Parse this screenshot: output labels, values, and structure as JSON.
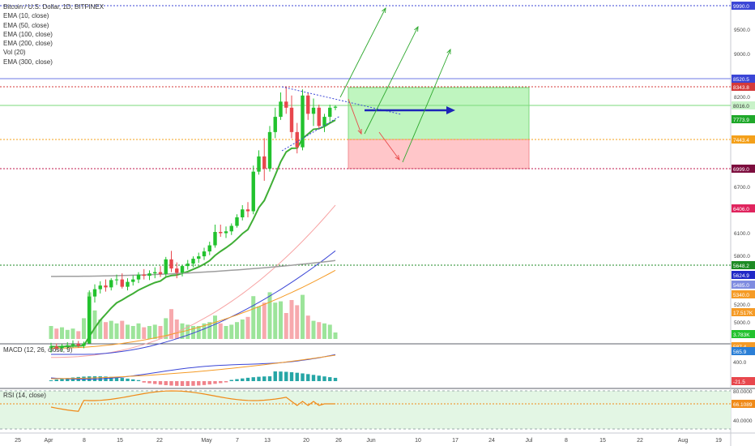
{
  "legend": {
    "title": "Bitcoin / U.S. Dollar, 1D, BITFINEX",
    "studies": [
      "EMA (10, close)",
      "EMA (50, close)",
      "EMA (100, close)",
      "EMA (200, close)",
      "Vol (20)",
      "EMA (300, close)"
    ]
  },
  "macd_label": "MACD (12, 26, close, 9)",
  "rsi_label": "RSI (14, close)",
  "colors": {
    "up": "#22c22e",
    "down": "#e8474d",
    "ema10": "#3fae35",
    "ema50": "#f7a3a3",
    "ema100": "#3b46d6",
    "ema200": "#f59b26",
    "ema300": "#9e9e9e",
    "volume_up": "#9ce49a",
    "volume_down": "#f7a9ad",
    "profit_zone": "#bff5bf",
    "loss_zone": "#ffc6c9",
    "rsi_band": "#e3f6e4"
  },
  "chart_data": {
    "type": "candlestick",
    "x_labels": [
      "25",
      "Apr",
      "8",
      "15",
      "22",
      "May",
      "7",
      "13",
      "20",
      "26",
      "Jun",
      "10",
      "17",
      "24",
      "Jul",
      "8",
      "15",
      "22",
      "Aug",
      "19"
    ],
    "price_axis_ticks": [
      "9500.0",
      "9000.0",
      "8200.0",
      "7000.0",
      "6700.0",
      "6100.0",
      "5800.0",
      "5200.0",
      "5000.0"
    ],
    "price_levels": [
      {
        "label": "9990.0",
        "value": 9990,
        "color": "#3b46d6"
      },
      {
        "label": "8520.5",
        "value": 8520.5,
        "color": "#3b46d6"
      },
      {
        "label": "8343.8",
        "value": 8343.8,
        "color": "#d43a3a"
      },
      {
        "label": "8016.0",
        "value": 8016,
        "color": "#7bd97b"
      },
      {
        "label": "7773.9",
        "value": 7773.9,
        "color": "#1fa82a"
      },
      {
        "label": "7443.4",
        "value": 7443.4,
        "color": "#f4a01a"
      },
      {
        "label": "6999.0",
        "value": 6999,
        "color": "#7d0d3e"
      },
      {
        "label": "6406.0",
        "value": 6406,
        "color": "#e0245e"
      },
      {
        "label": "5648.2",
        "value": 5648.2,
        "color": "#1d8a24"
      },
      {
        "label": "5624.9",
        "value": 5624.9,
        "color": "#2028c6"
      },
      {
        "label": "5485.0",
        "value": 5485,
        "color": "#7f8ce0"
      },
      {
        "label": "5340.0",
        "value": 5340,
        "color": "#f59b26"
      },
      {
        "label": "17.517K",
        "value": null,
        "color": "#f59b26"
      },
      {
        "label": "3.783K",
        "value": null,
        "color": "#22c22e"
      }
    ],
    "macd_axis": [
      "587.4",
      "565.9",
      "400.0",
      "-21.5"
    ],
    "rsi_axis": [
      "80.0000",
      "66.1089",
      "40.0000"
    ],
    "candles": [
      {
        "o": 4060,
        "h": 4140,
        "l": 3980,
        "c": 4080,
        "v": 1.0
      },
      {
        "o": 4080,
        "h": 4130,
        "l": 4020,
        "c": 4050,
        "v": 0.8
      },
      {
        "o": 4050,
        "h": 4120,
        "l": 3990,
        "c": 4090,
        "v": 0.9
      },
      {
        "o": 4090,
        "h": 4150,
        "l": 4040,
        "c": 4100,
        "v": 0.7
      },
      {
        "o": 4100,
        "h": 4180,
        "l": 4060,
        "c": 4120,
        "v": 0.8
      },
      {
        "o": 4120,
        "h": 4170,
        "l": 4060,
        "c": 4090,
        "v": 0.6
      },
      {
        "o": 4090,
        "h": 4160,
        "l": 4050,
        "c": 4130,
        "v": 1.6
      },
      {
        "o": 4130,
        "h": 5000,
        "l": 4120,
        "c": 4900,
        "v": 3.6
      },
      {
        "o": 4900,
        "h": 5100,
        "l": 4800,
        "c": 5020,
        "v": 2.2
      },
      {
        "o": 5020,
        "h": 5150,
        "l": 4950,
        "c": 5080,
        "v": 1.5
      },
      {
        "o": 5080,
        "h": 5180,
        "l": 4980,
        "c": 5050,
        "v": 1.3
      },
      {
        "o": 5050,
        "h": 5200,
        "l": 5000,
        "c": 5170,
        "v": 1.4
      },
      {
        "o": 5170,
        "h": 5260,
        "l": 5090,
        "c": 5180,
        "v": 1.2
      },
      {
        "o": 5180,
        "h": 5280,
        "l": 5030,
        "c": 5060,
        "v": 1.4
      },
      {
        "o": 5060,
        "h": 5200,
        "l": 5000,
        "c": 5140,
        "v": 1.1
      },
      {
        "o": 5140,
        "h": 5250,
        "l": 5080,
        "c": 5180,
        "v": 1.0
      },
      {
        "o": 5180,
        "h": 5300,
        "l": 5120,
        "c": 5260,
        "v": 1.2
      },
      {
        "o": 5260,
        "h": 5350,
        "l": 5180,
        "c": 5240,
        "v": 0.9
      },
      {
        "o": 5240,
        "h": 5330,
        "l": 5170,
        "c": 5280,
        "v": 1.0
      },
      {
        "o": 5280,
        "h": 5380,
        "l": 5200,
        "c": 5300,
        "v": 1.1
      },
      {
        "o": 5300,
        "h": 5400,
        "l": 5220,
        "c": 5270,
        "v": 1.0
      },
      {
        "o": 5270,
        "h": 5550,
        "l": 5230,
        "c": 5510,
        "v": 1.6
      },
      {
        "o": 5510,
        "h": 5650,
        "l": 5300,
        "c": 5360,
        "v": 2.3
      },
      {
        "o": 5360,
        "h": 5460,
        "l": 5200,
        "c": 5290,
        "v": 1.5
      },
      {
        "o": 5290,
        "h": 5420,
        "l": 5230,
        "c": 5400,
        "v": 1.2
      },
      {
        "o": 5400,
        "h": 5500,
        "l": 5340,
        "c": 5440,
        "v": 1.1
      },
      {
        "o": 5440,
        "h": 5560,
        "l": 5380,
        "c": 5520,
        "v": 1.0
      },
      {
        "o": 5520,
        "h": 5620,
        "l": 5450,
        "c": 5560,
        "v": 1.0
      },
      {
        "o": 5560,
        "h": 5700,
        "l": 5500,
        "c": 5640,
        "v": 1.2
      },
      {
        "o": 5640,
        "h": 5800,
        "l": 5580,
        "c": 5740,
        "v": 1.3
      },
      {
        "o": 5740,
        "h": 6080,
        "l": 5700,
        "c": 5960,
        "v": 1.8
      },
      {
        "o": 5960,
        "h": 6080,
        "l": 5880,
        "c": 5940,
        "v": 1.2
      },
      {
        "o": 5940,
        "h": 6050,
        "l": 5860,
        "c": 5970,
        "v": 1.0
      },
      {
        "o": 5970,
        "h": 6100,
        "l": 5910,
        "c": 6060,
        "v": 1.1
      },
      {
        "o": 6060,
        "h": 6250,
        "l": 6030,
        "c": 6200,
        "v": 1.3
      },
      {
        "o": 6200,
        "h": 6400,
        "l": 6150,
        "c": 6330,
        "v": 1.5
      },
      {
        "o": 6330,
        "h": 6450,
        "l": 6200,
        "c": 6300,
        "v": 1.7
      },
      {
        "o": 6300,
        "h": 7050,
        "l": 6250,
        "c": 6950,
        "v": 3.3
      },
      {
        "o": 6950,
        "h": 7300,
        "l": 6900,
        "c": 7200,
        "v": 2.5
      },
      {
        "o": 7200,
        "h": 7500,
        "l": 6800,
        "c": 7000,
        "v": 2.8
      },
      {
        "o": 7000,
        "h": 7700,
        "l": 6950,
        "c": 7600,
        "v": 3.6
      },
      {
        "o": 7600,
        "h": 8000,
        "l": 7500,
        "c": 7850,
        "v": 2.8
      },
      {
        "o": 7850,
        "h": 8250,
        "l": 7800,
        "c": 8100,
        "v": 2.9
      },
      {
        "o": 8100,
        "h": 8340,
        "l": 7900,
        "c": 8000,
        "v": 2.0
      },
      {
        "o": 8000,
        "h": 8200,
        "l": 7500,
        "c": 7600,
        "v": 3.0
      },
      {
        "o": 7600,
        "h": 7750,
        "l": 7250,
        "c": 7350,
        "v": 2.6
      },
      {
        "o": 7350,
        "h": 8300,
        "l": 7300,
        "c": 8200,
        "v": 3.4
      },
      {
        "o": 8200,
        "h": 8250,
        "l": 7800,
        "c": 7900,
        "v": 1.8
      },
      {
        "o": 7900,
        "h": 8150,
        "l": 7700,
        "c": 8000,
        "v": 1.4
      },
      {
        "o": 8000,
        "h": 8050,
        "l": 7650,
        "c": 7700,
        "v": 1.3
      },
      {
        "o": 7700,
        "h": 7900,
        "l": 7600,
        "c": 7850,
        "v": 1.2
      },
      {
        "o": 7850,
        "h": 8050,
        "l": 7780,
        "c": 8000,
        "v": 1.1
      },
      {
        "o": 8000,
        "h": 8040,
        "l": 7960,
        "c": 8016,
        "v": 0.5
      }
    ],
    "trade_setup": {
      "entry": 7443.4,
      "stop": 6999.0,
      "target": 8343.8
    }
  }
}
